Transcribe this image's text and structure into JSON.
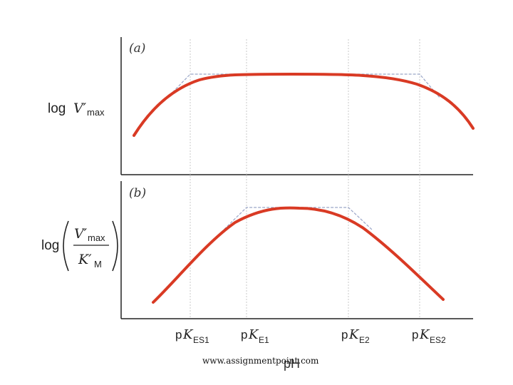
{
  "chart_data": [
    {
      "type": "line",
      "panel": "(a)",
      "ylabel": "log V'max",
      "xlabel": "pH",
      "reference_lines": [
        "pKES1",
        "pKE1",
        "pKE2",
        "pKES2"
      ],
      "series": [
        {
          "values": [
            [
              0,
              1.8
            ],
            [
              1,
              3.2
            ],
            [
              2,
              4.3
            ],
            [
              3,
              4.95
            ],
            [
              4,
              5.0
            ],
            [
              5,
              5.0
            ],
            [
              6,
              4.95
            ],
            [
              7,
              4.4
            ],
            [
              8,
              3.0
            ]
          ]
        }
      ],
      "asymptotes": [
        [
          1,
          4.5
        ],
        [
          2,
          5.3
        ],
        [
          6,
          5.3
        ],
        [
          7,
          4.5
        ]
      ]
    },
    {
      "type": "line",
      "panel": "(b)",
      "ylabel": "log (V'max / K'M)",
      "xlabel": "pH",
      "reference_lines": [
        "pKES1",
        "pKE1",
        "pKE2",
        "pKES2"
      ],
      "series": [
        {
          "values": [
            [
              0,
              0.6
            ],
            [
              1,
              2.7
            ],
            [
              2,
              4.4
            ],
            [
              3,
              4.9
            ],
            [
              4,
              4.9
            ],
            [
              5,
              4.5
            ],
            [
              6,
              3.2
            ],
            [
              7,
              1.7
            ],
            [
              8,
              0.7
            ]
          ]
        }
      ],
      "asymptotes": [
        [
          1,
          3.2
        ],
        [
          2,
          5.0
        ],
        [
          5,
          5.0
        ],
        [
          6,
          3.8
        ]
      ]
    }
  ],
  "labels": {
    "panel_a": "(a)",
    "panel_b": "(b)",
    "ylabel_a_log": "log",
    "ylabel_a_V": "V′",
    "ylabel_a_sub": "max",
    "ylabel_b_log": "log",
    "ylabel_b_V": "V′",
    "ylabel_b_sub": "max",
    "ylabel_b_K": "K′",
    "ylabel_b_Ksub": "M",
    "tick_p": "p",
    "tick_K": "K",
    "tick1_sub": "ES1",
    "tick2_sub": "E1",
    "tick3_sub": "E2",
    "tick4_sub": "ES2",
    "xlabel": "pH",
    "watermark": "www.assignmentpoint.com"
  },
  "colors": {
    "curve": "#d93a24",
    "asymptote": "#9aa6c8",
    "guide": "#c8c8c8",
    "axis": "#222222"
  }
}
